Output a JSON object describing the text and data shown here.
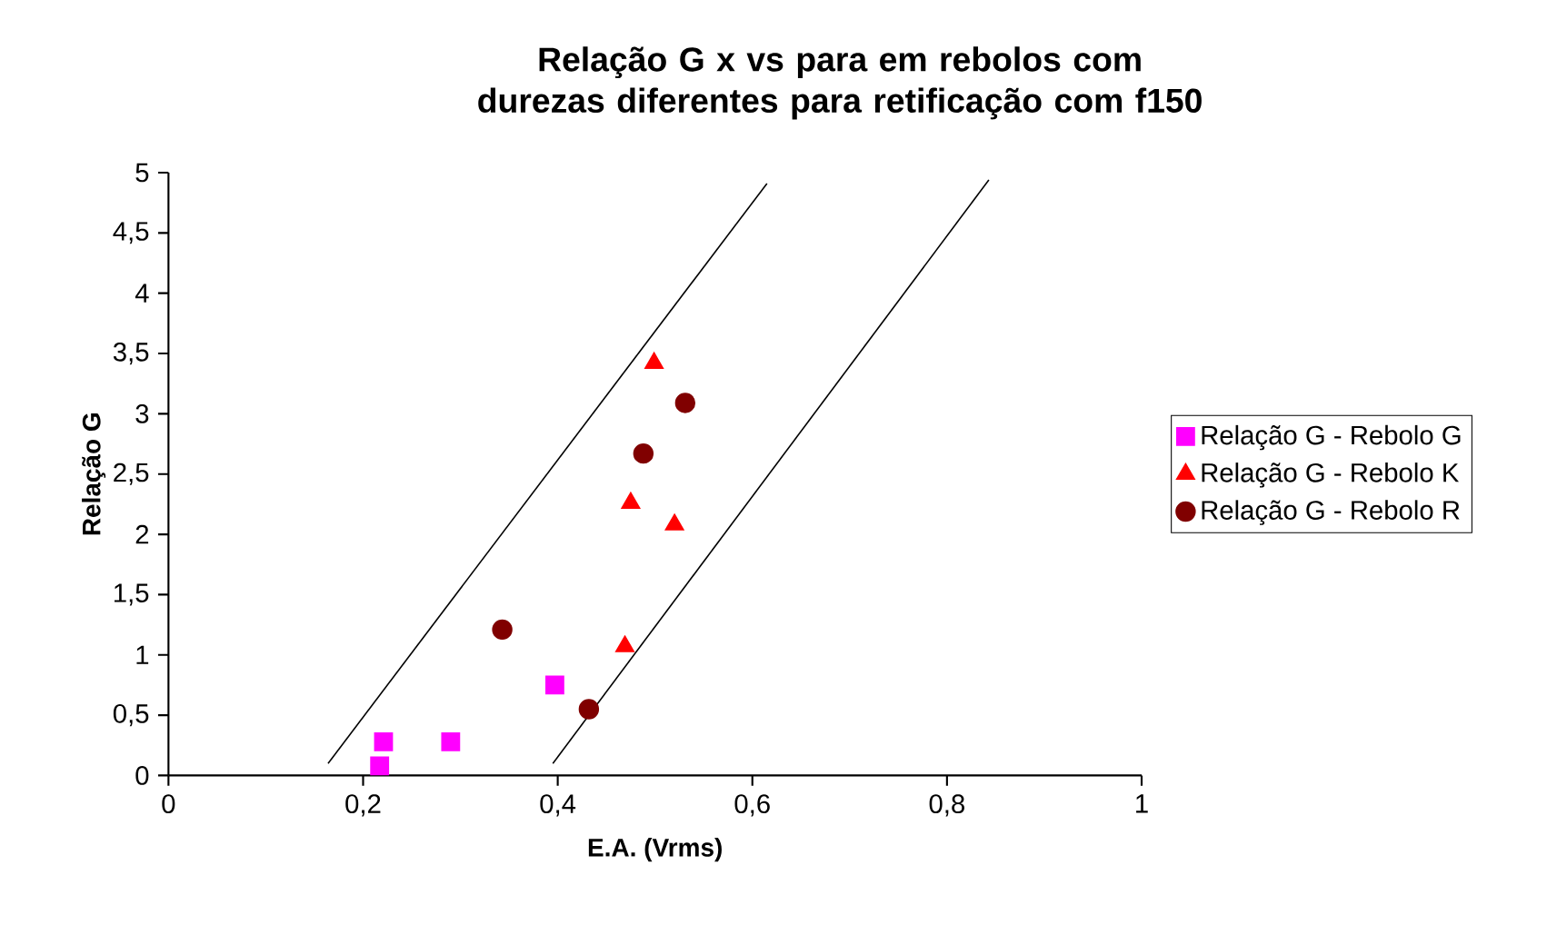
{
  "chart_data": {
    "type": "scatter",
    "title": "Relação G x vs para em rebolos com durezas diferentes para retificação com f150",
    "xlabel": "E.A. (Vrms)",
    "ylabel": "Relação G",
    "xlim": [
      0,
      1
    ],
    "xticks": [
      0,
      {
        "value": 0.2,
        "label": "0,2"
      },
      {
        "value": 0.4,
        "label": "0,4"
      },
      {
        "value": 0.6,
        "label": "0,6"
      },
      {
        "value": 0.8,
        "label": "0,8"
      },
      1
    ],
    "ylim": [
      0,
      5
    ],
    "yticks": [
      0,
      {
        "value": 0.5,
        "label": "0,5"
      },
      1,
      {
        "value": 1.5,
        "label": "1,5"
      },
      2,
      {
        "value": 2.5,
        "label": "2,5"
      },
      3,
      {
        "value": 3.5,
        "label": "3,5"
      },
      4,
      {
        "value": 4.5,
        "label": "4,5"
      },
      5
    ],
    "grid": false,
    "legend": "right",
    "series": [
      {
        "name": "Relação G - Rebolo G",
        "color": "#ff00ff",
        "marker": "square",
        "x": [
          0.217,
          0.221,
          0.29,
          0.397
        ],
        "values": [
          0.08,
          0.28,
          0.28,
          0.75
        ]
      },
      {
        "name": "Relação G - Rebolo K",
        "color": "#ff0000",
        "marker": "triangle",
        "x": [
          0.499,
          0.475,
          0.52,
          0.469
        ],
        "values": [
          3.42,
          2.26,
          2.08,
          1.07
        ]
      },
      {
        "name": "Relação G - Rebolo R",
        "color": "#800000",
        "marker": "circle",
        "x": [
          0.343,
          0.432,
          0.488,
          0.531
        ],
        "values": [
          1.21,
          0.55,
          2.67,
          3.09
        ]
      },
      {
        "type": "line",
        "color": "#000000",
        "marker": "none",
        "x": [
          0.164,
          0.615
        ],
        "values": [
          0.1,
          4.91
        ]
      },
      {
        "type": "line",
        "color": "#000000",
        "marker": "none",
        "x": [
          0.395,
          0.843
        ],
        "values": [
          0.1,
          4.94
        ]
      }
    ]
  }
}
